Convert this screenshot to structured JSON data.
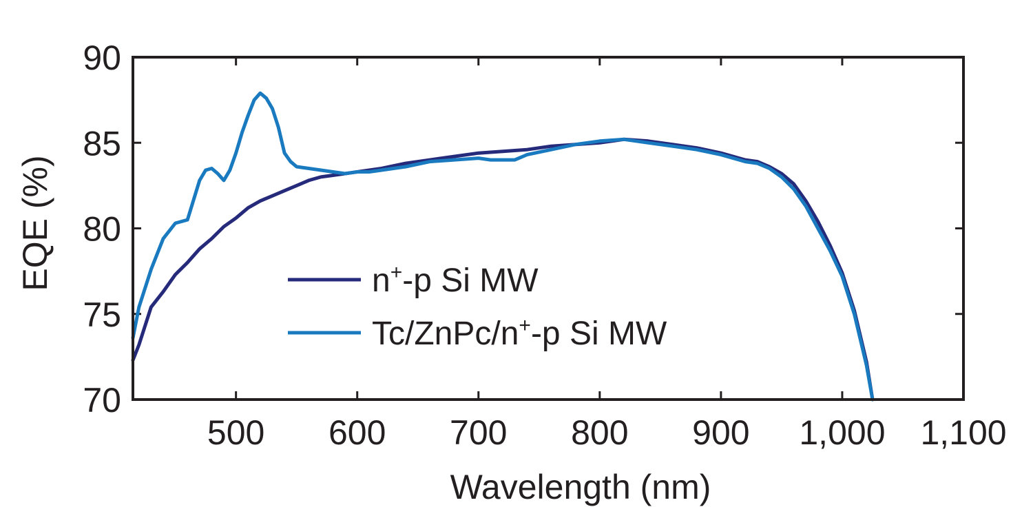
{
  "chart_data": {
    "type": "line",
    "title": "",
    "xlabel": "Wavelength (nm)",
    "ylabel": "EQE (%)",
    "xlim": [
      415,
      1100
    ],
    "ylim": [
      70,
      90
    ],
    "xticks": [
      500,
      600,
      700,
      800,
      900,
      1000,
      1100
    ],
    "xtick_labels": [
      "500",
      "600",
      "700",
      "800",
      "900",
      "1,000",
      "1,100"
    ],
    "yticks": [
      70,
      75,
      80,
      85,
      90
    ],
    "ytick_labels": [
      "70",
      "75",
      "80",
      "85",
      "90"
    ],
    "grid": false,
    "legend_position": "center-left",
    "series": [
      {
        "name": "n+-p Si MW",
        "name_parts": {
          "base": "n",
          "sup": "+",
          "rest": "-p Si MW"
        },
        "color": "#262a7a",
        "x": [
          415,
          420,
          430,
          440,
          450,
          460,
          470,
          480,
          490,
          500,
          510,
          520,
          530,
          540,
          550,
          560,
          570,
          580,
          590,
          600,
          620,
          640,
          660,
          680,
          700,
          720,
          740,
          760,
          780,
          800,
          820,
          840,
          860,
          880,
          900,
          920,
          930,
          940,
          950,
          960,
          970,
          980,
          990,
          1000,
          1010,
          1020,
          1025
        ],
        "y": [
          72.3,
          73.2,
          75.4,
          76.3,
          77.3,
          78.0,
          78.8,
          79.4,
          80.1,
          80.6,
          81.2,
          81.6,
          81.9,
          82.2,
          82.5,
          82.8,
          83.0,
          83.1,
          83.2,
          83.3,
          83.5,
          83.8,
          84.0,
          84.2,
          84.4,
          84.5,
          84.6,
          84.8,
          84.9,
          85.0,
          85.2,
          85.1,
          84.9,
          84.7,
          84.4,
          84.0,
          83.9,
          83.6,
          83.2,
          82.6,
          81.6,
          80.4,
          79.0,
          77.4,
          75.2,
          72.2,
          70.0
        ]
      },
      {
        "name": "Tc/ZnPc/n+-p Si MW",
        "name_parts": {
          "base": "Tc/ZnPc/n",
          "sup": "+",
          "rest": "-p Si MW"
        },
        "color": "#1a7abf",
        "x": [
          415,
          420,
          430,
          440,
          450,
          460,
          470,
          475,
          480,
          485,
          490,
          495,
          500,
          505,
          510,
          515,
          520,
          525,
          530,
          535,
          540,
          545,
          550,
          560,
          570,
          580,
          590,
          600,
          610,
          620,
          640,
          660,
          680,
          700,
          710,
          720,
          730,
          740,
          760,
          780,
          800,
          820,
          840,
          860,
          880,
          900,
          920,
          930,
          940,
          950,
          960,
          970,
          980,
          990,
          1000,
          1010,
          1020,
          1025
        ],
        "y": [
          73.6,
          75.4,
          77.6,
          79.4,
          80.3,
          80.5,
          82.8,
          83.4,
          83.5,
          83.2,
          82.8,
          83.4,
          84.4,
          85.6,
          86.6,
          87.5,
          87.9,
          87.6,
          87.0,
          85.9,
          84.4,
          83.9,
          83.6,
          83.5,
          83.4,
          83.3,
          83.2,
          83.3,
          83.3,
          83.4,
          83.6,
          83.9,
          84.0,
          84.1,
          84.0,
          84.0,
          84.0,
          84.3,
          84.6,
          84.9,
          85.1,
          85.2,
          85.0,
          84.8,
          84.6,
          84.3,
          83.9,
          83.8,
          83.5,
          83.0,
          82.3,
          81.3,
          80.0,
          78.7,
          77.2,
          75.0,
          72.0,
          70.0
        ]
      }
    ]
  }
}
